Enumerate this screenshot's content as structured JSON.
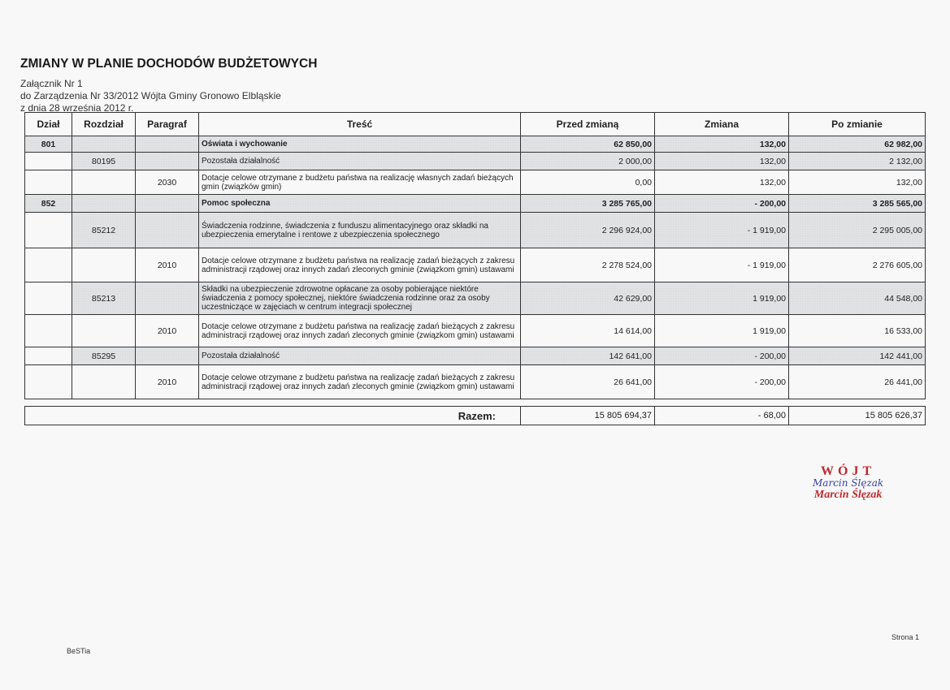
{
  "header": {
    "title": "ZMIANY W PLANIE DOCHODÓW BUDŻETOWYCH",
    "line1": "Załącznik Nr 1",
    "line2": "do Zarządzenia Nr 33/2012 Wójta Gminy Gronowo Elbląskie",
    "line3": "z dnia 28 września 2012 r."
  },
  "table": {
    "columns": [
      "Dział",
      "Rozdział",
      "Paragraf",
      "Treść",
      "Przed zmianą",
      "Zmiana",
      "Po zmianie"
    ],
    "rows": [
      {
        "dzial": "801",
        "rozdzial": "",
        "paragraf": "",
        "tresc": "Oświata i wychowanie",
        "przed": "62 850,00",
        "zmiana": "132,00",
        "po": "62 982,00",
        "level": "dzial"
      },
      {
        "dzial": "",
        "rozdzial": "80195",
        "paragraf": "",
        "tresc": "Pozostała działalność",
        "przed": "2 000,00",
        "zmiana": "132,00",
        "po": "2 132,00",
        "level": "rozdzial"
      },
      {
        "dzial": "",
        "rozdzial": "",
        "paragraf": "2030",
        "tresc": "Dotacje celowe otrzymane z budżetu państwa na realizację własnych zadań bieżących gmin (związków gmin)",
        "przed": "0,00",
        "zmiana": "132,00",
        "po": "132,00",
        "level": "paragraf"
      },
      {
        "dzial": "852",
        "rozdzial": "",
        "paragraf": "",
        "tresc": "Pomoc społeczna",
        "przed": "3 285 765,00",
        "zmiana": "- 200,00",
        "po": "3 285 565,00",
        "level": "dzial"
      },
      {
        "dzial": "",
        "rozdzial": "85212",
        "paragraf": "",
        "tresc": "Świadczenia rodzinne, świadczenia z funduszu alimentacyjnego oraz składki na ubezpieczenia emerytalne i rentowe z ubezpieczenia społecznego",
        "przed": "2 296 924,00",
        "zmiana": "- 1 919,00",
        "po": "2 295 005,00",
        "level": "rozdzial"
      },
      {
        "dzial": "",
        "rozdzial": "",
        "paragraf": "2010",
        "tresc": "Dotacje celowe otrzymane z budżetu państwa na realizację zadań bieżących z zakresu administracji rządowej oraz innych zadań zleconych gminie (związkom gmin) ustawami",
        "przed": "2 278 524,00",
        "zmiana": "- 1 919,00",
        "po": "2 276 605,00",
        "level": "paragraf"
      },
      {
        "dzial": "",
        "rozdzial": "85213",
        "paragraf": "",
        "tresc": "Składki na ubezpieczenie zdrowotne opłacane za osoby pobierające niektóre świadczenia z pomocy społecznej, niektóre świadczenia rodzinne oraz za osoby uczestniczące w zajęciach w centrum integracji społecznej",
        "przed": "42 629,00",
        "zmiana": "1 919,00",
        "po": "44 548,00",
        "level": "rozdzial"
      },
      {
        "dzial": "",
        "rozdzial": "",
        "paragraf": "2010",
        "tresc": "Dotacje celowe otrzymane z budżetu państwa na realizację zadań bieżących z zakresu administracji rządowej oraz innych zadań zleconych gminie (związkom gmin) ustawami",
        "przed": "14 614,00",
        "zmiana": "1 919,00",
        "po": "16 533,00",
        "level": "paragraf"
      },
      {
        "dzial": "",
        "rozdzial": "85295",
        "paragraf": "",
        "tresc": "Pozostała działalność",
        "przed": "142 641,00",
        "zmiana": "- 200,00",
        "po": "142 441,00",
        "level": "rozdzial"
      },
      {
        "dzial": "",
        "rozdzial": "",
        "paragraf": "2010",
        "tresc": "Dotacje celowe otrzymane z budżetu państwa na realizację zadań bieżących z zakresu administracji rządowej oraz innych zadań zleconych gminie (związkom gmin) ustawami",
        "przed": "26 641,00",
        "zmiana": "- 200,00",
        "po": "26 441,00",
        "level": "paragraf"
      }
    ],
    "total": {
      "label": "Razem:",
      "przed": "15 805 694,37",
      "zmiana": "- 68,00",
      "po": "15 805 626,37"
    }
  },
  "stamp": {
    "title": "WÓJT",
    "signature": "Marcin Ślęzak",
    "name": "Marcin Ślęzak",
    "color": "#c0282e"
  },
  "footer": {
    "left": "BeSTia",
    "right": "Strona 1"
  }
}
